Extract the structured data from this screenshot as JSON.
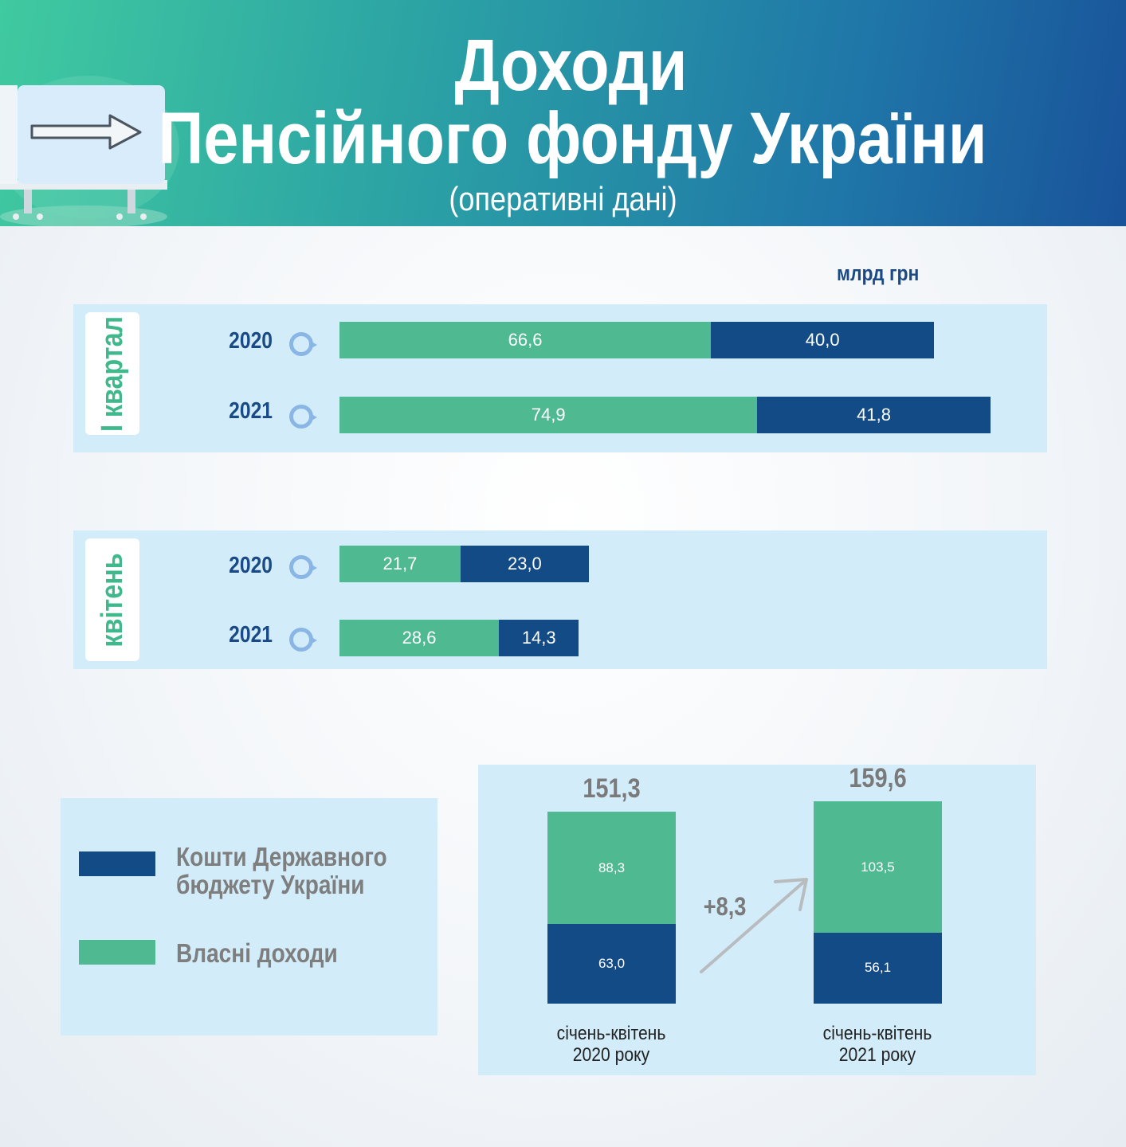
{
  "header": {
    "title_line1": "Доходи",
    "title_line2": "Пенсійного фонду України",
    "subtitle": "(оперативні дані)"
  },
  "unit_label": "млрд грн",
  "colors": {
    "own_income": "#4fba92",
    "state_budget": "#134b86",
    "panel": "#d2ecf9",
    "accent_text": "#1a4a85"
  },
  "legend": [
    {
      "key": "state_budget",
      "label_line1": "Кошти Державного",
      "label_line2": "бюджету України"
    },
    {
      "key": "own_income",
      "label_line1": "Власні доходи",
      "label_line2": ""
    }
  ],
  "chart_data": [
    {
      "type": "bar",
      "orientation": "horizontal",
      "stacked": true,
      "group_label": "I квартал",
      "categories": [
        "2020",
        "2021"
      ],
      "series": [
        {
          "name": "Власні доходи",
          "values": [
            66.6,
            74.9
          ],
          "labels": [
            "66,6",
            "74,9"
          ]
        },
        {
          "name": "Кошти Державного бюджету України",
          "values": [
            40.0,
            41.8
          ],
          "labels": [
            "40,0",
            "41,8"
          ]
        }
      ],
      "xlim": [
        0,
        120
      ]
    },
    {
      "type": "bar",
      "orientation": "horizontal",
      "stacked": true,
      "group_label": "квітень",
      "categories": [
        "2020",
        "2021"
      ],
      "series": [
        {
          "name": "Власні доходи",
          "values": [
            21.7,
            28.6
          ],
          "labels": [
            "21,7",
            "28,6"
          ]
        },
        {
          "name": "Кошти Державного бюджету України",
          "values": [
            23.0,
            14.3
          ],
          "labels": [
            "23,0",
            "14,3"
          ]
        }
      ],
      "xlim": [
        0,
        120
      ]
    },
    {
      "type": "bar",
      "orientation": "vertical",
      "stacked": true,
      "categories": [
        {
          "line1": "січень-квітень",
          "line2": "2020 року"
        },
        {
          "line1": "січень-квітень",
          "line2": "2021 року"
        }
      ],
      "totals": [
        "151,3",
        "159,6"
      ],
      "series": [
        {
          "name": "Власні доходи",
          "values": [
            88.3,
            103.5
          ],
          "labels": [
            "88,3",
            "103,5"
          ]
        },
        {
          "name": "Кошти Державного бюджету України",
          "values": [
            63.0,
            56.1
          ],
          "labels": [
            "63,0",
            "56,1"
          ]
        }
      ],
      "change_label": "+8,3",
      "ylim": [
        0,
        170
      ]
    }
  ]
}
